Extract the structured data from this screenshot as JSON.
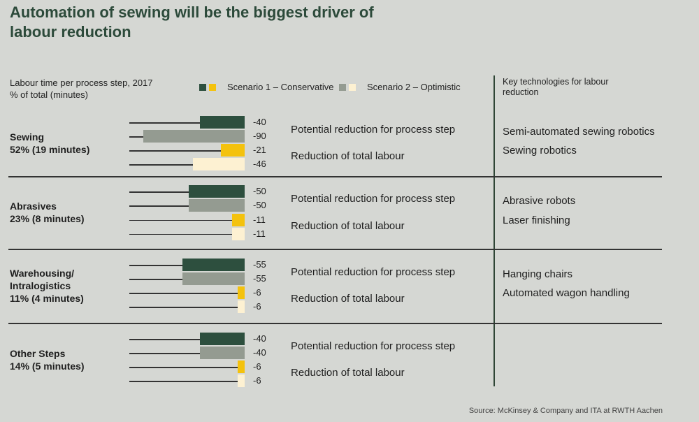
{
  "title": "Automation of sewing will be the biggest driver of labour reduction",
  "subtitle_line1": "Labour time per process step, 2017",
  "subtitle_line2": "% of total (minutes)",
  "key_heading": "Key technologies for labour reduction",
  "source": "Source: McKinsey & Company and ITA at RWTH Aachen",
  "colors": {
    "s1_process": "#2d4f3e",
    "s1_total": "#f4c20d",
    "s2_process": "#949b91",
    "s2_total": "#fdf1d2",
    "title": "#2c4a3a"
  },
  "chart_data": {
    "type": "bar",
    "orientation": "horizontal",
    "legend": [
      {
        "name": "Scenario 1 – Conservative"
      },
      {
        "name": "Scenario 2 – Optimistic"
      }
    ],
    "row_labels": [
      "Potential reduction for process step",
      "Reduction of total labour"
    ],
    "categories": [
      {
        "name": "Sewing",
        "share": "52% (19 minutes)",
        "values": [
          -40,
          -90,
          -21,
          -46
        ],
        "labels": [
          "-40",
          "-90",
          "-21",
          "-46"
        ],
        "technologies": [
          "Semi-automated sewing robotics",
          "Sewing robotics"
        ]
      },
      {
        "name": "Abrasives",
        "share": "23% (8 minutes)",
        "values": [
          -50,
          -50,
          -11,
          -11
        ],
        "labels": [
          "-50",
          "-50",
          "-11",
          "-11"
        ],
        "technologies": [
          "Abrasive robots",
          "Laser finishing"
        ]
      },
      {
        "name": "Warehousing/ Intralogistics",
        "share": "11% (4 minutes)",
        "values": [
          -55,
          -55,
          -6,
          -6
        ],
        "labels": [
          "-55",
          "-55",
          "-6",
          "-6"
        ],
        "technologies": [
          "Hanging chairs",
          "Automated wagon handling"
        ]
      },
      {
        "name": "Other Steps",
        "share": "14% (5 minutes)",
        "values": [
          -40,
          -40,
          -6,
          -6
        ],
        "labels": [
          "-40",
          "-40",
          "-6",
          "-6"
        ],
        "technologies": []
      }
    ],
    "xlim": [
      -100,
      0
    ]
  }
}
